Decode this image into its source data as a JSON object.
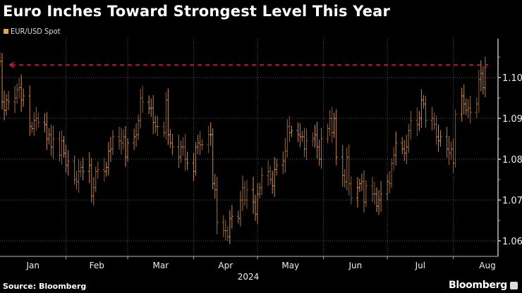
{
  "title": "Euro Inches Toward Strongest Level This Year",
  "source": "Source: Bloomberg",
  "brand": "Bloomberg",
  "chart_data": {
    "type": "ohlc",
    "title": "Euro Inches Toward Strongest Level This Year",
    "legend": [
      {
        "name": "EUR/USD Spot",
        "color": "#f7a035"
      }
    ],
    "legend_placement": "top-left",
    "series": [
      {
        "name": "EUR/USD Spot",
        "frequency": "business-daily",
        "first_date": "2024-01-01",
        "last_date": "2024-08-16",
        "close": [
          1.104,
          1.094,
          1.092,
          1.0945,
          1.094,
          1.095,
          1.097,
          1.0975,
          1.0945,
          1.0955,
          1.088,
          1.0875,
          1.0895,
          1.09,
          1.089,
          1.0885,
          1.085,
          1.086,
          1.083,
          1.085,
          1.081,
          1.0845,
          1.0815,
          1.0785,
          1.0795,
          1.075,
          1.0745,
          1.077,
          1.078,
          1.077,
          1.0785,
          1.071,
          1.073,
          1.077,
          1.0775,
          1.077,
          1.078,
          1.082,
          1.0825,
          1.0855,
          1.0845,
          1.084,
          1.0855,
          1.0805,
          1.084,
          1.0855,
          1.086,
          1.0895,
          1.095,
          1.094,
          1.0925,
          1.0925,
          1.089,
          1.088,
          1.088,
          1.0865,
          1.0945,
          1.086,
          1.084,
          1.083,
          1.0805,
          1.083,
          1.083,
          1.08,
          1.079,
          1.077,
          1.083,
          1.084,
          1.0835,
          1.0835,
          1.086,
          1.086,
          1.074,
          1.0725,
          1.0645,
          1.0625,
          1.0625,
          1.061,
          1.0655,
          1.066,
          1.0655,
          1.07,
          1.073,
          1.07,
          1.0725,
          1.0695,
          1.0665,
          1.0715,
          1.073,
          1.076,
          1.077,
          1.075,
          1.0735,
          1.0775,
          1.0785,
          1.0795,
          1.082,
          1.088,
          1.0865,
          1.087,
          1.086,
          1.0855,
          1.0855,
          1.0825,
          1.0845,
          1.085,
          1.086,
          1.083,
          1.08,
          1.085,
          1.0875,
          1.09,
          1.0865,
          1.09,
          1.0805,
          1.076,
          1.0745,
          1.0805,
          1.074,
          1.0705,
          1.073,
          1.074,
          1.0745,
          1.0695,
          1.0735,
          1.0715,
          1.0715,
          1.0685,
          1.07,
          1.0715,
          1.0745,
          1.074,
          1.079,
          1.081,
          1.084,
          1.0825,
          1.0815,
          1.083,
          1.087,
          1.0895,
          1.0885,
          1.09,
          1.0945,
          1.0935,
          1.0895,
          1.09,
          1.0885,
          1.0855,
          1.0845,
          1.0855,
          1.0825,
          1.0815,
          1.0825,
          1.079,
          1.091,
          1.0955,
          1.0935,
          1.092,
          1.0925,
          1.0915,
          1.0935,
          1.0995,
          1.101,
          1.0975,
          1.1025
        ],
        "color": "#e39a5a"
      }
    ],
    "reference_line": {
      "value": 1.1031,
      "style": "dashed",
      "color": "#d81e3c",
      "arrow": "left"
    },
    "xlabel": "2024",
    "xlim": [
      "2024-01-01",
      "2024-08-22"
    ],
    "x_tick_labels": [
      "Jan",
      "Feb",
      "Mar",
      "Apr",
      "May",
      "Jun",
      "Jul",
      "Aug"
    ],
    "ylim": [
      1.0562,
      1.1095
    ],
    "y_ticks": [
      1.06,
      1.07,
      1.08,
      1.09,
      1.1
    ],
    "y_tick_labels": [
      "1.06",
      "1.07",
      "1.08",
      "1.09",
      "1.10"
    ],
    "y_axis_side": "right",
    "grid": true
  }
}
